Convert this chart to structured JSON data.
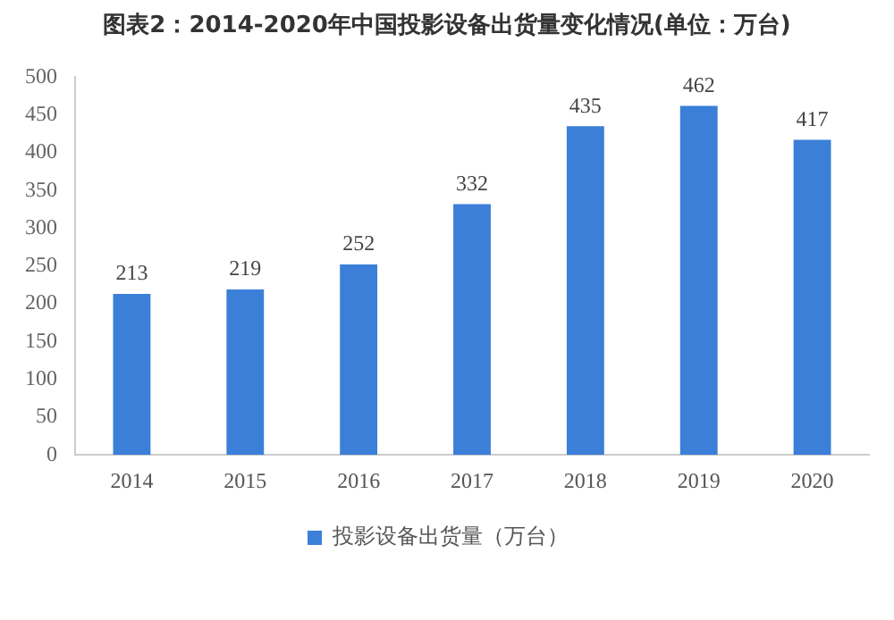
{
  "chart_data": {
    "type": "bar",
    "title": "图表2：2014-2020年中国投影设备出货量变化情况(单位：万台)",
    "categories": [
      "2014",
      "2015",
      "2016",
      "2017",
      "2018",
      "2019",
      "2020"
    ],
    "series": [
      {
        "name": "投影设备出货量（万台）",
        "color": "#3b7fd9",
        "values": [
          213,
          219,
          252,
          332,
          435,
          462,
          417
        ]
      }
    ],
    "ylim": [
      0,
      500
    ],
    "yticks": [
      0,
      50,
      100,
      150,
      200,
      250,
      300,
      350,
      400,
      450,
      500
    ],
    "grid": false,
    "legend": "bottom",
    "data_labels": true
  }
}
